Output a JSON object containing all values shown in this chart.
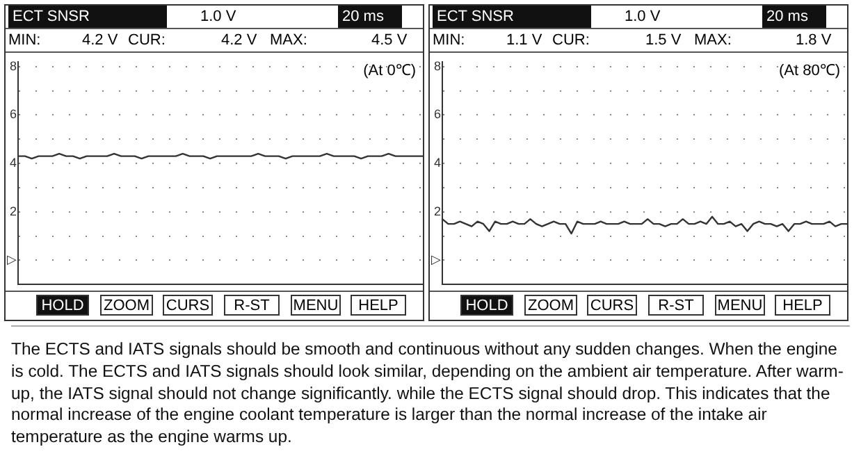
{
  "chart_data": [
    {
      "type": "line",
      "title": "ECT SNSR",
      "annotations": [
        "1.0 V",
        "20 ms",
        "MIN:",
        "4.2 V",
        "CUR:",
        "4.2 V",
        "MAX:",
        "4.5 V",
        "(At 0℃)",
        "HOLD",
        "ZOOM",
        "CURS",
        "R-ST",
        "MENU",
        "HELP"
      ],
      "categories": [
        null,
        null,
        null,
        null,
        null,
        null,
        null,
        null,
        null,
        null,
        null,
        null,
        null,
        null,
        null,
        null,
        null,
        null,
        null,
        null,
        null,
        null,
        null,
        null,
        null,
        null,
        null,
        null,
        null,
        null,
        null,
        null,
        null,
        null,
        null,
        null,
        null,
        null,
        null,
        null,
        null,
        null,
        null,
        null,
        null,
        null,
        null,
        null,
        null,
        null,
        null,
        null,
        null,
        null,
        null,
        null,
        null,
        null,
        null,
        null
      ],
      "series": [
        {
          "color": "#333333",
          "values": [
            4.3,
            4.3,
            4.2,
            4.3,
            4.3,
            4.3,
            4.4,
            4.3,
            4.3,
            4.2,
            4.3,
            4.3,
            4.3,
            4.3,
            4.4,
            4.3,
            4.3,
            4.3,
            4.2,
            4.3,
            4.3,
            4.3,
            4.3,
            4.3,
            4.4,
            4.3,
            4.3,
            4.3,
            4.2,
            4.3,
            4.3,
            4.3,
            4.3,
            4.3,
            4.3,
            4.4,
            4.3,
            4.3,
            4.3,
            4.2,
            4.3,
            4.3,
            4.3,
            4.3,
            4.3,
            4.4,
            4.3,
            4.3,
            4.3,
            4.3,
            4.2,
            4.3,
            4.3,
            4.3,
            4.4,
            4.3,
            4.3,
            4.3,
            4.3,
            4.3
          ]
        }
      ],
      "ylim": [
        -1,
        8.2
      ],
      "yticks": [
        {
          "value": 0,
          "label": "▷"
        },
        {
          "value": 1,
          "label": null
        },
        2,
        {
          "value": 3,
          "label": null
        },
        4,
        {
          "value": 5,
          "label": null
        },
        6,
        {
          "value": 7,
          "label": null
        },
        8
      ],
      "grid": "y",
      "legend": false,
      "marker": "none",
      "tick_labels": "y"
    },
    {
      "type": "line",
      "title": "ECT SNSR",
      "annotations": [
        "1.0 V",
        "20 ms",
        "MIN:",
        "1.1 V",
        "CUR:",
        "1.5 V",
        "MAX:",
        "1.8 V",
        "(At 80℃)",
        "HOLD",
        "ZOOM",
        "CURS",
        "R-ST",
        "MENU",
        "HELP"
      ],
      "categories": [
        null,
        null,
        null,
        null,
        null,
        null,
        null,
        null,
        null,
        null,
        null,
        null,
        null,
        null,
        null,
        null,
        null,
        null,
        null,
        null,
        null,
        null,
        null,
        null,
        null,
        null,
        null,
        null,
        null,
        null,
        null,
        null,
        null,
        null,
        null,
        null,
        null,
        null,
        null,
        null,
        null,
        null,
        null,
        null,
        null,
        null,
        null,
        null,
        null,
        null,
        null,
        null,
        null,
        null,
        null,
        null,
        null,
        null,
        null,
        null,
        null,
        null,
        null,
        null,
        null,
        null,
        null,
        null,
        null,
        null
      ],
      "series": [
        {
          "color": "#333333",
          "values": [
            1.7,
            1.5,
            1.5,
            1.6,
            1.5,
            1.4,
            1.6,
            1.5,
            1.2,
            1.6,
            1.5,
            1.5,
            1.6,
            1.5,
            1.5,
            1.7,
            1.5,
            1.4,
            1.5,
            1.6,
            1.5,
            1.5,
            1.1,
            1.6,
            1.5,
            1.5,
            1.5,
            1.6,
            1.5,
            1.5,
            1.5,
            1.6,
            1.5,
            1.5,
            1.5,
            1.7,
            1.5,
            1.5,
            1.4,
            1.5,
            1.5,
            1.7,
            1.5,
            1.5,
            1.6,
            1.5,
            1.8,
            1.5,
            1.5,
            1.6,
            1.4,
            1.5,
            1.2,
            1.5,
            1.6,
            1.5,
            1.5,
            1.4,
            1.5,
            1.2,
            1.5,
            1.5,
            1.6,
            1.5,
            1.5,
            1.5,
            1.6,
            1.4,
            1.5,
            1.5
          ]
        }
      ],
      "ylim": [
        -1,
        8.2
      ],
      "yticks": [
        {
          "value": 0,
          "label": "▷"
        },
        {
          "value": 1,
          "label": null
        },
        2,
        {
          "value": 3,
          "label": null
        },
        4,
        {
          "value": 5,
          "label": null
        },
        6,
        {
          "value": 7,
          "label": null
        },
        8
      ],
      "grid": "y",
      "legend": false,
      "marker": "none",
      "tick_labels": "y"
    },
    {
      "type": "other",
      "annotations": [
        "The ECTS and IATS signals should be smooth and continuous without any sudden changes. When the engine is cold. The ECTS and IATS signals should look similar, depending on the ambient air temperature. After warm-up, the IATS signal should not change significantly. while the ECTS signal should drop. This indicates that the normal increase of the engine coolant temperature is larger than the normal increase of the intake air temperature as the engine warms up."
      ]
    }
  ]
}
